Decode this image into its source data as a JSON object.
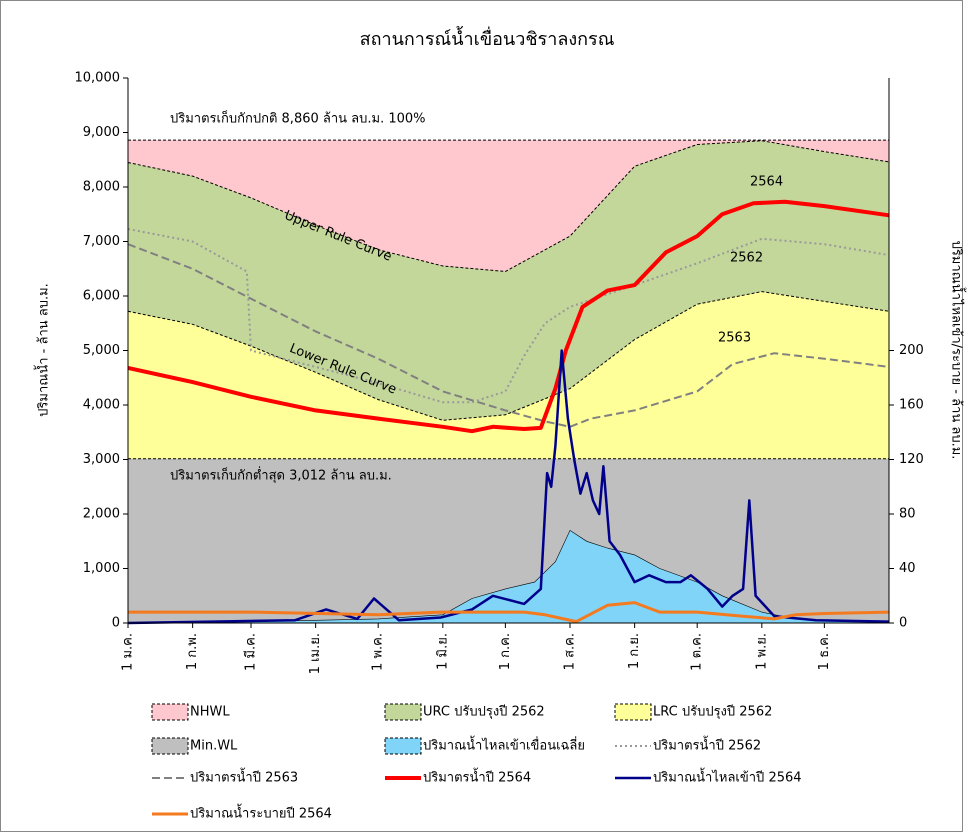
{
  "chart_data": {
    "type": "line",
    "title": "สถานการณ์น้ำเขื่อนวชิราลงกรณ",
    "y_label": "ปริมาณน้ำ - ล้าน ลบ.ม.",
    "y2_label": "ปริมาณน้ำไหลเข้า/ระบาย - ล้าน ลบ.ม.",
    "annotations": [
      "ปริมาตรเก็บกักปกติ 8,860 ล้าน ลบ.ม. 100%",
      "ปริมาตรเก็บกักต่ำสุด 3,012 ล้าน ลบ.ม.",
      "Upper Rule Curve",
      "Lower Rule Curve",
      "2564",
      "2562",
      "2563"
    ],
    "xlim": [
      0,
      365
    ],
    "xticks": [
      {
        "value": 0,
        "label": "1 ม.ค."
      },
      {
        "value": 31,
        "label": "1 ก.พ."
      },
      {
        "value": 59,
        "label": "1 มี.ค."
      },
      {
        "value": 90,
        "label": "1 เม.ย."
      },
      {
        "value": 120,
        "label": "1 พ.ค."
      },
      {
        "value": 151,
        "label": "1 มิ.ย."
      },
      {
        "value": 181,
        "label": "1 ก.ค."
      },
      {
        "value": 212,
        "label": "1 ส.ค."
      },
      {
        "value": 243,
        "label": "1 ก.ย."
      },
      {
        "value": 273,
        "label": "1 ต.ค."
      },
      {
        "value": 304,
        "label": "1 พ.ย."
      },
      {
        "value": 334,
        "label": "1 ธ.ค."
      }
    ],
    "ylim": [
      0,
      10000
    ],
    "yticks": [
      0,
      {
        "value": 1000,
        "label": "1,000"
      },
      {
        "value": 2000,
        "label": "2,000"
      },
      {
        "value": 3000,
        "label": "3,000"
      },
      {
        "value": 4000,
        "label": "4,000"
      },
      {
        "value": 5000,
        "label": "5,000"
      },
      {
        "value": 6000,
        "label": "6,000"
      },
      {
        "value": 7000,
        "label": "7,000"
      },
      {
        "value": 8000,
        "label": "8,000"
      },
      {
        "value": 9000,
        "label": "9,000"
      },
      {
        "value": 10000,
        "label": "10,000"
      }
    ],
    "y2lim": [
      0,
      400
    ],
    "y2ticks": [
      0,
      40,
      80,
      120,
      160,
      200
    ],
    "series": [
      {
        "name": "NHWL",
        "kind": "area",
        "color": "#ffc7ce",
        "x": [
          0,
          365
        ],
        "values": [
          8860,
          8860
        ]
      },
      {
        "name": "URC ปรับปรุงปี 2562",
        "kind": "area",
        "color": "#c4d79b",
        "x": [
          0,
          31,
          59,
          90,
          120,
          151,
          181,
          212,
          243,
          273,
          304,
          334,
          365
        ],
        "values": [
          8450,
          8200,
          7800,
          7300,
          6850,
          6550,
          6450,
          7100,
          8380,
          8780,
          8850,
          8650,
          8460
        ]
      },
      {
        "name": "LRC ปรับปรุงปี 2562",
        "kind": "area",
        "color": "#ffff99",
        "x": [
          0,
          31,
          59,
          90,
          120,
          151,
          181,
          212,
          243,
          273,
          304,
          334,
          365
        ],
        "values": [
          5720,
          5480,
          5080,
          4600,
          4100,
          3720,
          3820,
          4300,
          5200,
          5850,
          6080,
          5900,
          5720
        ]
      },
      {
        "name": "Min.WL",
        "kind": "area",
        "color": "#bfbfbf",
        "x": [
          0,
          365
        ],
        "values": [
          3012,
          3012
        ]
      },
      {
        "name": "ปริมาณน้ำไหลเข้าเขื่อนเฉลี่ย",
        "kind": "area",
        "axis": "y2",
        "color": "#7fd4f7",
        "x": [
          0,
          31,
          59,
          90,
          120,
          151,
          165,
          181,
          195,
          205,
          212,
          220,
          230,
          243,
          255,
          273,
          285,
          304,
          320,
          334,
          365
        ],
        "values": [
          0,
          1,
          1,
          2,
          3,
          6,
          18,
          25,
          30,
          45,
          68,
          60,
          55,
          50,
          40,
          30,
          20,
          8,
          3,
          2,
          1
        ]
      },
      {
        "name": "ปริมาตรน้ำปี 2562",
        "kind": "line",
        "dash": "dotted",
        "color": "#999999",
        "x": [
          0,
          31,
          57,
          59,
          90,
          120,
          151,
          165,
          181,
          190,
          200,
          212,
          243,
          273,
          304,
          334,
          365
        ],
        "values": [
          7230,
          7000,
          6450,
          5000,
          4700,
          4400,
          4050,
          4050,
          4250,
          4900,
          5500,
          5800,
          6200,
          6600,
          7050,
          6950,
          6750
        ]
      },
      {
        "name": "ปริมาตรน้ำปี 2563",
        "kind": "line",
        "dash": "dashed",
        "color": "#808080",
        "x": [
          0,
          31,
          59,
          90,
          120,
          151,
          181,
          200,
          212,
          222,
          243,
          273,
          290,
          310,
          334,
          365
        ],
        "values": [
          6950,
          6500,
          5950,
          5350,
          4850,
          4250,
          3900,
          3700,
          3600,
          3750,
          3900,
          4250,
          4750,
          4950,
          4850,
          4700
        ]
      },
      {
        "name": "ปริมาตรน้ำปี 2564",
        "kind": "line",
        "color": "#ff0000",
        "width": 4,
        "x": [
          0,
          31,
          59,
          90,
          120,
          151,
          165,
          175,
          190,
          198,
          205,
          210,
          218,
          230,
          243,
          258,
          273,
          285,
          300,
          315,
          334,
          365
        ],
        "values": [
          4680,
          4420,
          4150,
          3900,
          3750,
          3600,
          3520,
          3600,
          3560,
          3580,
          4300,
          5000,
          5800,
          6100,
          6200,
          6800,
          7100,
          7500,
          7700,
          7730,
          7650,
          7480
        ]
      },
      {
        "name": "ปริมาณน้ำไหลเข้าปี 2564",
        "kind": "line",
        "axis": "y2",
        "color": "#00008b",
        "width": 2.5,
        "x": [
          0,
          40,
          80,
          95,
          110,
          118,
          130,
          150,
          165,
          175,
          190,
          198,
          201,
          203,
          205,
          208,
          211,
          214,
          217,
          220,
          223,
          226,
          228,
          231,
          236,
          243,
          250,
          258,
          265,
          270,
          278,
          285,
          290,
          295,
          298,
          301,
          310,
          330,
          365
        ],
        "values": [
          0,
          1,
          2,
          10,
          3,
          18,
          2,
          4,
          10,
          20,
          14,
          25,
          110,
          100,
          130,
          200,
          150,
          120,
          95,
          110,
          90,
          80,
          115,
          60,
          50,
          30,
          35,
          30,
          30,
          35,
          25,
          12,
          20,
          25,
          90,
          20,
          5,
          2,
          1
        ]
      },
      {
        "name": "ปริมาณน้ำระบายปี 2564",
        "kind": "line",
        "axis": "y2",
        "color": "#f47a1f",
        "width": 3,
        "x": [
          0,
          60,
          120,
          150,
          190,
          200,
          215,
          230,
          243,
          255,
          273,
          295,
          310,
          320,
          334,
          365
        ],
        "values": [
          8,
          8,
          6,
          8,
          8,
          6,
          1,
          13,
          15,
          8,
          8,
          5,
          3,
          6,
          7,
          8
        ]
      }
    ]
  }
}
